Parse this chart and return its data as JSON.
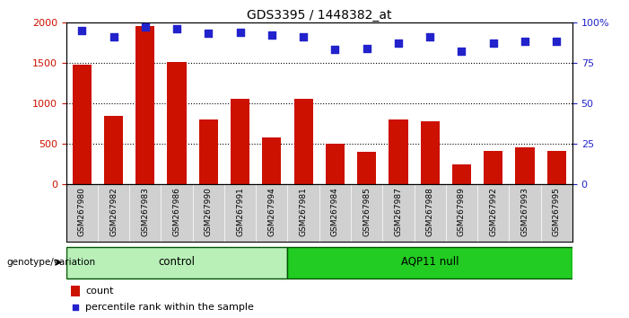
{
  "title": "GDS3395 / 1448382_at",
  "samples": [
    "GSM267980",
    "GSM267982",
    "GSM267983",
    "GSM267986",
    "GSM267990",
    "GSM267991",
    "GSM267994",
    "GSM267981",
    "GSM267984",
    "GSM267985",
    "GSM267987",
    "GSM267988",
    "GSM267989",
    "GSM267992",
    "GSM267993",
    "GSM267995"
  ],
  "counts": [
    1480,
    840,
    1950,
    1510,
    800,
    1060,
    580,
    1060,
    500,
    400,
    800,
    780,
    250,
    410,
    460,
    415
  ],
  "percentile_ranks": [
    95,
    91,
    97,
    96,
    93,
    94,
    92,
    91,
    83,
    84,
    87,
    91,
    82,
    87,
    88,
    88
  ],
  "control_group": {
    "name": "control",
    "indices": [
      0,
      1,
      2,
      3,
      4,
      5,
      6
    ],
    "color": "#b8f0b8"
  },
  "aqp_group": {
    "name": "AQP11 null",
    "indices": [
      7,
      8,
      9,
      10,
      11,
      12,
      13,
      14,
      15
    ],
    "color": "#22cc22"
  },
  "bar_color": "#cc1100",
  "dot_color": "#2222cc",
  "left_ylim": [
    0,
    2000
  ],
  "left_yticks": [
    0,
    500,
    1000,
    1500,
    2000
  ],
  "right_ylim": [
    0,
    100
  ],
  "right_yticks": [
    0,
    25,
    50,
    75,
    100
  ],
  "left_tick_color": "#cc1100",
  "right_tick_color": "#2222cc",
  "xtick_bg_color": "#d0d0d0",
  "group_border_color": "#005500",
  "legend_count_label": "count",
  "legend_pct_label": "percentile rank within the sample",
  "geno_label": "genotype/variation"
}
